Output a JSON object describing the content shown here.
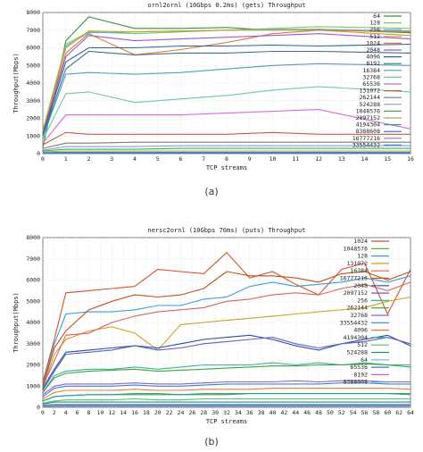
{
  "chart_data": [
    {
      "type": "line",
      "panel_label": "(a)",
      "title": "ornl2ornl (10Gbps 0.2ms) (gets) Throughput",
      "xlabel": "TCP streams",
      "ylabel": "Throughput(Mbps)",
      "xlim": [
        0,
        16
      ],
      "ylim": [
        0,
        8000
      ],
      "xticks": [
        0,
        1,
        2,
        3,
        4,
        5,
        6,
        7,
        8,
        9,
        10,
        11,
        12,
        13,
        14,
        15,
        16
      ],
      "yticks": [
        0,
        1000,
        2000,
        3000,
        4000,
        5000,
        6000,
        7000,
        8000
      ],
      "grid": true,
      "legend_position": "top-right",
      "x": [
        0,
        1,
        2,
        4,
        6,
        8,
        10,
        12,
        16
      ],
      "series": [
        {
          "name": "64",
          "color": "#3a8f3a",
          "values": [
            350,
            6400,
            7750,
            7100,
            7100,
            7150,
            7000,
            7050,
            6850
          ]
        },
        {
          "name": "128",
          "color": "#7acc5a",
          "values": [
            1300,
            6200,
            6900,
            6800,
            6900,
            7000,
            7100,
            7200,
            7100
          ]
        },
        {
          "name": "256",
          "color": "#5ab0d8",
          "values": [
            1200,
            6100,
            6850,
            6900,
            6950,
            7000,
            7050,
            7050,
            6950
          ]
        },
        {
          "name": "512",
          "color": "#c8a030",
          "values": [
            1300,
            6000,
            6950,
            6900,
            6950,
            7000,
            7000,
            7000,
            6700
          ]
        },
        {
          "name": "1024",
          "color": "#e07b39",
          "values": [
            1200,
            5700,
            6800,
            5600,
            5900,
            6300,
            6800,
            7000,
            6900
          ]
        },
        {
          "name": "2048",
          "color": "#9a5bc9",
          "values": [
            1100,
            5500,
            6700,
            6400,
            6500,
            6600,
            6700,
            6800,
            6500
          ]
        },
        {
          "name": "4096",
          "color": "#2f5f9f",
          "values": [
            1100,
            5200,
            6000,
            6000,
            6100,
            6100,
            6150,
            6100,
            6200
          ]
        },
        {
          "name": "8192",
          "color": "#3f6f8f",
          "values": [
            1000,
            4800,
            5800,
            5600,
            5700,
            5700,
            5800,
            5800,
            5700
          ]
        },
        {
          "name": "16384",
          "color": "#4aa0c0",
          "values": [
            900,
            4500,
            4600,
            4500,
            4600,
            4800,
            5000,
            5100,
            5000
          ]
        },
        {
          "name": "32768",
          "color": "#66cc99",
          "values": [
            800,
            3400,
            3500,
            2900,
            3100,
            3300,
            3600,
            3800,
            3500
          ]
        },
        {
          "name": "65536",
          "color": "#d46adf",
          "values": [
            600,
            2200,
            2200,
            2200,
            2200,
            2300,
            2400,
            2500,
            1400
          ]
        },
        {
          "name": "131072",
          "color": "#c06040",
          "values": [
            500,
            1200,
            1100,
            1100,
            1100,
            1100,
            1200,
            1100,
            1100
          ]
        },
        {
          "name": "262144",
          "color": "#7a7a7a",
          "values": [
            300,
            600,
            600,
            650,
            650,
            650,
            650,
            650,
            650
          ]
        },
        {
          "name": "524288",
          "color": "#7fa0d0",
          "values": [
            200,
            400,
            400,
            400,
            450,
            450,
            450,
            450,
            450
          ]
        },
        {
          "name": "1048576",
          "color": "#44aa66",
          "values": [
            150,
            250,
            250,
            250,
            300,
            300,
            300,
            300,
            300
          ]
        },
        {
          "name": "2097152",
          "color": "#b0b040",
          "values": [
            100,
            150,
            150,
            150,
            150,
            150,
            150,
            150,
            150
          ]
        },
        {
          "name": "4194304",
          "color": "#30a0a0",
          "values": [
            60,
            80,
            80,
            80,
            80,
            80,
            80,
            80,
            80
          ]
        },
        {
          "name": "8388608",
          "color": "#4060c0",
          "values": [
            30,
            40,
            40,
            40,
            40,
            40,
            40,
            40,
            40
          ]
        },
        {
          "name": "16777216",
          "color": "#a070d0",
          "values": [
            20,
            25,
            25,
            25,
            25,
            25,
            25,
            25,
            25
          ]
        },
        {
          "name": "33554432",
          "color": "#5080c0",
          "values": [
            10,
            15,
            15,
            15,
            15,
            15,
            15,
            15,
            15
          ]
        }
      ]
    },
    {
      "type": "line",
      "panel_label": "(b)",
      "title": "nersc2ornl (10Gbps 70ms) (puts) Throughput",
      "xlabel": "TCP streams",
      "ylabel": "Throughput(Mbps)",
      "xlim": [
        0,
        64
      ],
      "ylim": [
        0,
        8000
      ],
      "xticks": [
        0,
        2,
        4,
        6,
        8,
        10,
        12,
        14,
        16,
        18,
        20,
        22,
        24,
        26,
        28,
        30,
        32,
        34,
        36,
        38,
        40,
        42,
        44,
        46,
        48,
        50,
        52,
        54,
        56,
        58,
        60,
        62,
        64
      ],
      "yticks": [
        0,
        1000,
        2000,
        3000,
        4000,
        5000,
        6000,
        7000,
        8000
      ],
      "grid": true,
      "legend_position": "top-right",
      "x": [
        0,
        2,
        4,
        8,
        12,
        16,
        20,
        24,
        28,
        32,
        36,
        40,
        44,
        48,
        52,
        56,
        60,
        64
      ],
      "series": [
        {
          "name": "1024",
          "color": "#d8502a",
          "values": [
            1200,
            3200,
            5400,
            5500,
            5600,
            5700,
            6500,
            6400,
            6300,
            7300,
            6100,
            6400,
            5800,
            5300,
            6500,
            6800,
            4400,
            6500
          ]
        },
        {
          "name": "1048576",
          "color": "#5aa030",
          "values": [
            300,
            500,
            550,
            600,
            600,
            650,
            650,
            600,
            650,
            650,
            650,
            650,
            650,
            650,
            650,
            650,
            650,
            600
          ]
        },
        {
          "name": "128",
          "color": "#3a9ad9",
          "values": [
            1100,
            3000,
            4400,
            4500,
            4500,
            4600,
            4800,
            4800,
            5100,
            5200,
            5700,
            5900,
            5700,
            5800,
            5900,
            6100,
            5900,
            6200
          ]
        },
        {
          "name": "131072",
          "color": "#d0a020",
          "values": [
            900,
            2500,
            3200,
            3600,
            3800,
            3500,
            2700,
            3900,
            4000,
            4100,
            4200,
            4300,
            4400,
            4500,
            4600,
            4700,
            5000,
            5200
          ]
        },
        {
          "name": "16384",
          "color": "#e06060",
          "values": [
            1000,
            2200,
            3400,
            3500,
            4000,
            4300,
            4500,
            4600,
            4700,
            5000,
            5100,
            5300,
            5400,
            5300,
            5600,
            5800,
            5500,
            5900
          ]
        },
        {
          "name": "16777216",
          "color": "#c0501a",
          "values": [
            1000,
            2800,
            3600,
            4600,
            5000,
            5300,
            5200,
            5300,
            5600,
            6400,
            6200,
            6200,
            6100,
            5900,
            6300,
            6400,
            6000,
            6400
          ]
        },
        {
          "name": "2048",
          "color": "#2050b0",
          "values": [
            900,
            1800,
            2600,
            2700,
            2800,
            2900,
            2800,
            3000,
            3200,
            3300,
            3400,
            3200,
            2900,
            2700,
            3000,
            3200,
            3400,
            2900
          ]
        },
        {
          "name": "2097152",
          "color": "#6060c0",
          "values": [
            800,
            1700,
            2500,
            2600,
            2700,
            2900,
            2700,
            2800,
            3000,
            3100,
            3200,
            3300,
            3000,
            2800,
            3000,
            3100,
            3300,
            3000
          ]
        },
        {
          "name": "256",
          "color": "#3ab0a0",
          "values": [
            700,
            1500,
            1700,
            1800,
            1800,
            1900,
            1800,
            1900,
            2000,
            2000,
            2000,
            2100,
            2000,
            2100,
            2000,
            2100,
            2000,
            2000
          ]
        },
        {
          "name": "262144",
          "color": "#40a040",
          "values": [
            700,
            1400,
            1600,
            1700,
            1750,
            1800,
            1700,
            1750,
            1800,
            1850,
            1900,
            1950,
            1950,
            2000,
            2000,
            2050,
            2000,
            1900
          ]
        },
        {
          "name": "32768",
          "color": "#9060c0",
          "values": [
            600,
            1000,
            1100,
            1100,
            1100,
            1150,
            1100,
            1100,
            1150,
            1200,
            1200,
            1200,
            1250,
            1200,
            1250,
            1250,
            1200,
            1200
          ]
        },
        {
          "name": "33554432",
          "color": "#4080d0",
          "values": [
            500,
            900,
            1000,
            1000,
            1000,
            1050,
            1000,
            1000,
            1050,
            1100,
            1100,
            1100,
            1100,
            1100,
            1150,
            1150,
            1100,
            1100
          ]
        },
        {
          "name": "4096",
          "color": "#e08040",
          "values": [
            400,
            700,
            800,
            800,
            800,
            850,
            800,
            800,
            850,
            850,
            850,
            900,
            900,
            900,
            900,
            900,
            900,
            850
          ]
        },
        {
          "name": "4194304",
          "color": "#20a0a0",
          "values": [
            300,
            500,
            550,
            600,
            600,
            600,
            600,
            600,
            600,
            600,
            650,
            650,
            650,
            650,
            650,
            650,
            650,
            650
          ]
        },
        {
          "name": "512",
          "color": "#50c070",
          "values": [
            200,
            300,
            350,
            350,
            350,
            400,
            350,
            350,
            400,
            400,
            400,
            400,
            400,
            400,
            400,
            400,
            400,
            400
          ]
        },
        {
          "name": "524288",
          "color": "#2f8f6f",
          "values": [
            150,
            250,
            250,
            250,
            250,
            250,
            250,
            250,
            250,
            250,
            250,
            250,
            250,
            250,
            250,
            250,
            250,
            250
          ]
        },
        {
          "name": "64",
          "color": "#70b0e0",
          "values": [
            100,
            150,
            150,
            150,
            150,
            150,
            150,
            150,
            150,
            150,
            150,
            150,
            150,
            150,
            150,
            150,
            150,
            150
          ]
        },
        {
          "name": "65536",
          "color": "#3f7faf",
          "values": [
            80,
            100,
            100,
            100,
            100,
            100,
            100,
            100,
            100,
            100,
            100,
            100,
            100,
            100,
            100,
            100,
            100,
            100
          ]
        },
        {
          "name": "8192",
          "color": "#c06bd0",
          "values": [
            60,
            80,
            80,
            80,
            80,
            80,
            80,
            80,
            80,
            80,
            80,
            80,
            80,
            80,
            80,
            80,
            80,
            80
          ]
        },
        {
          "name": "8388608",
          "color": "#5aa0c0",
          "values": [
            40,
            50,
            50,
            50,
            50,
            50,
            50,
            50,
            50,
            50,
            50,
            50,
            50,
            50,
            50,
            50,
            50,
            50
          ]
        }
      ]
    }
  ]
}
